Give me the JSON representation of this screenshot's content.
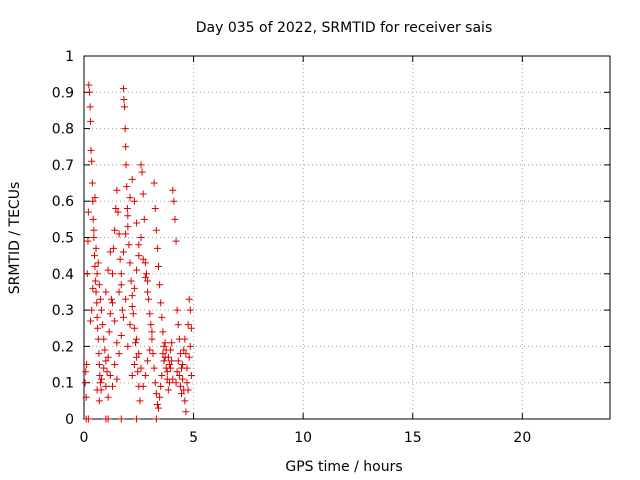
{
  "chart_data": {
    "type": "scatter",
    "title": "Day 035 of 2022, SRMTID for receiver sais",
    "xlabel": "GPS time / hours",
    "ylabel": "SRMTID / TECUs",
    "xlim": [
      0,
      24
    ],
    "ylim": [
      0,
      1
    ],
    "xticks": [
      0,
      5,
      10,
      15,
      20
    ],
    "xtick_labels": [
      "0",
      "5",
      "10",
      "15",
      "20"
    ],
    "yticks": [
      0,
      0.1,
      0.2,
      0.3,
      0.4,
      0.5,
      0.6,
      0.7,
      0.8,
      0.9,
      1
    ],
    "ytick_labels": [
      "0",
      "0.1",
      "0.2",
      "0.3",
      "0.4",
      "0.5",
      "0.6",
      "0.7",
      "0.8",
      "0.9",
      "1"
    ],
    "grid": true,
    "marker": "+",
    "color": "#dd0000",
    "series": [
      {
        "name": "SRMTID",
        "points": [
          [
            0.05,
            0.1
          ],
          [
            0.08,
            0.13
          ],
          [
            0.1,
            0.06
          ],
          [
            0.12,
            0.15
          ],
          [
            0.15,
            0.4
          ],
          [
            0.18,
            0.49
          ],
          [
            0.2,
            0.57
          ],
          [
            0.22,
            0.92
          ],
          [
            0.25,
            0.9
          ],
          [
            0.28,
            0.86
          ],
          [
            0.3,
            0.82
          ],
          [
            0.32,
            0.74
          ],
          [
            0.35,
            0.71
          ],
          [
            0.38,
            0.65
          ],
          [
            0.4,
            0.6
          ],
          [
            0.42,
            0.55
          ],
          [
            0.45,
            0.5
          ],
          [
            0.48,
            0.45
          ],
          [
            0.5,
            0.42
          ],
          [
            0.52,
            0.38
          ],
          [
            0.55,
            0.35
          ],
          [
            0.58,
            0.32
          ],
          [
            0.6,
            0.28
          ],
          [
            0.62,
            0.25
          ],
          [
            0.65,
            0.22
          ],
          [
            0.68,
            0.18
          ],
          [
            0.7,
            0.15
          ],
          [
            0.72,
            0.12
          ],
          [
            0.75,
            0.1
          ],
          [
            0.78,
            0.08
          ],
          [
            0.3,
            0.27
          ],
          [
            0.35,
            0.3
          ],
          [
            0.4,
            0.36
          ],
          [
            0.45,
            0.52
          ],
          [
            0.5,
            0.61
          ],
          [
            0.55,
            0.47
          ],
          [
            0.6,
            0.4
          ],
          [
            0.65,
            0.43
          ],
          [
            0.7,
            0.37
          ],
          [
            0.75,
            0.33
          ],
          [
            0.8,
            0.3
          ],
          [
            0.85,
            0.26
          ],
          [
            0.9,
            0.22
          ],
          [
            0.95,
            0.19
          ],
          [
            1.0,
            0.16
          ],
          [
            1.05,
            0.13
          ],
          [
            1.1,
            0.17
          ],
          [
            1.15,
            0.24
          ],
          [
            1.2,
            0.29
          ],
          [
            1.25,
            0.33
          ],
          [
            1.3,
            0.4
          ],
          [
            1.35,
            0.47
          ],
          [
            1.4,
            0.52
          ],
          [
            1.45,
            0.58
          ],
          [
            1.5,
            0.63
          ],
          [
            1.55,
            0.57
          ],
          [
            1.6,
            0.51
          ],
          [
            1.65,
            0.44
          ],
          [
            1.7,
            0.37
          ],
          [
            1.75,
            0.3
          ],
          [
            1.8,
            0.91
          ],
          [
            1.82,
            0.88
          ],
          [
            1.85,
            0.86
          ],
          [
            1.88,
            0.8
          ],
          [
            1.9,
            0.75
          ],
          [
            1.92,
            0.7
          ],
          [
            1.95,
            0.64
          ],
          [
            1.98,
            0.58
          ],
          [
            2.0,
            0.53
          ],
          [
            2.05,
            0.48
          ],
          [
            2.1,
            0.43
          ],
          [
            2.15,
            0.38
          ],
          [
            2.2,
            0.34
          ],
          [
            2.25,
            0.29
          ],
          [
            2.3,
            0.25
          ],
          [
            2.35,
            0.21
          ],
          [
            2.4,
            0.17
          ],
          [
            2.45,
            0.13
          ],
          [
            2.5,
            0.09
          ],
          [
            2.55,
            0.05
          ],
          [
            1.0,
            0.35
          ],
          [
            1.1,
            0.41
          ],
          [
            1.2,
            0.46
          ],
          [
            1.3,
            0.32
          ],
          [
            1.4,
            0.27
          ],
          [
            1.5,
            0.21
          ],
          [
            1.6,
            0.18
          ],
          [
            1.7,
            0.23
          ],
          [
            1.8,
            0.28
          ],
          [
            1.9,
            0.33
          ],
          [
            2.0,
            0.2
          ],
          [
            2.1,
            0.26
          ],
          [
            2.2,
            0.31
          ],
          [
            2.3,
            0.36
          ],
          [
            2.4,
            0.41
          ],
          [
            2.5,
            0.45
          ],
          [
            2.6,
            0.5
          ],
          [
            2.7,
            0.44
          ],
          [
            2.8,
            0.39
          ],
          [
            2.9,
            0.35
          ],
          [
            2.6,
            0.7
          ],
          [
            2.65,
            0.68
          ],
          [
            2.7,
            0.62
          ],
          [
            2.75,
            0.55
          ],
          [
            2.8,
            0.43
          ],
          [
            2.85,
            0.4
          ],
          [
            2.9,
            0.38
          ],
          [
            2.95,
            0.33
          ],
          [
            3.0,
            0.29
          ],
          [
            3.05,
            0.26
          ],
          [
            3.1,
            0.22
          ],
          [
            3.15,
            0.18
          ],
          [
            3.2,
            0.14
          ],
          [
            3.25,
            0.1
          ],
          [
            3.3,
            0.07
          ],
          [
            3.35,
            0.04
          ],
          [
            3.4,
            0.03
          ],
          [
            3.45,
            0.06
          ],
          [
            3.5,
            0.09
          ],
          [
            3.55,
            0.12
          ],
          [
            3.2,
            0.65
          ],
          [
            3.25,
            0.58
          ],
          [
            3.3,
            0.52
          ],
          [
            3.35,
            0.47
          ],
          [
            3.4,
            0.42
          ],
          [
            3.45,
            0.37
          ],
          [
            3.5,
            0.32
          ],
          [
            3.55,
            0.28
          ],
          [
            3.6,
            0.24
          ],
          [
            3.65,
            0.2
          ],
          [
            3.7,
            0.17
          ],
          [
            3.75,
            0.14
          ],
          [
            3.8,
            0.11
          ],
          [
            3.85,
            0.08
          ],
          [
            3.9,
            0.15
          ],
          [
            3.95,
            0.19
          ],
          [
            4.0,
            0.21
          ],
          [
            4.05,
            0.63
          ],
          [
            4.1,
            0.6
          ],
          [
            4.15,
            0.55
          ],
          [
            4.2,
            0.49
          ],
          [
            4.25,
            0.3
          ],
          [
            4.3,
            0.26
          ],
          [
            4.35,
            0.22
          ],
          [
            4.4,
            0.18
          ],
          [
            4.45,
            0.14
          ],
          [
            4.5,
            0.11
          ],
          [
            4.55,
            0.08
          ],
          [
            4.6,
            0.05
          ],
          [
            4.65,
            0.02
          ],
          [
            4.2,
            0.1
          ],
          [
            4.25,
            0.13
          ],
          [
            4.3,
            0.16
          ],
          [
            4.35,
            0.12
          ],
          [
            4.4,
            0.09
          ],
          [
            4.45,
            0.07
          ],
          [
            4.5,
            0.15
          ],
          [
            4.55,
            0.19
          ],
          [
            4.6,
            0.22
          ],
          [
            4.65,
            0.18
          ],
          [
            4.7,
            0.14
          ],
          [
            4.75,
            0.26
          ],
          [
            4.8,
            0.33
          ],
          [
            4.85,
            0.3
          ],
          [
            4.7,
            0.1
          ],
          [
            4.75,
            0.08
          ],
          [
            4.8,
            0.17
          ],
          [
            4.85,
            0.2
          ],
          [
            4.9,
            0.25
          ],
          [
            4.9,
            0.12
          ],
          [
            3.6,
            0.18
          ],
          [
            3.65,
            0.16
          ],
          [
            3.7,
            0.21
          ],
          [
            3.75,
            0.19
          ],
          [
            3.8,
            0.13
          ],
          [
            3.85,
            0.17
          ],
          [
            3.9,
            0.1
          ],
          [
            3.95,
            0.14
          ],
          [
            4.0,
            0.16
          ],
          [
            4.05,
            0.11
          ],
          [
            2.2,
            0.12
          ],
          [
            2.3,
            0.15
          ],
          [
            2.4,
            0.22
          ],
          [
            2.5,
            0.18
          ],
          [
            2.6,
            0.14
          ],
          [
            2.7,
            0.09
          ],
          [
            2.8,
            0.12
          ],
          [
            2.9,
            0.16
          ],
          [
            3.0,
            0.19
          ],
          [
            3.1,
            0.24
          ],
          [
            0.6,
            0.08
          ],
          [
            0.7,
            0.05
          ],
          [
            0.8,
            0.11
          ],
          [
            0.9,
            0.14
          ],
          [
            1.0,
            0.09
          ],
          [
            1.1,
            0.06
          ],
          [
            1.2,
            0.12
          ],
          [
            1.3,
            0.09
          ],
          [
            1.4,
            0.15
          ],
          [
            1.5,
            0.11
          ],
          [
            1.6,
            0.35
          ],
          [
            1.7,
            0.4
          ],
          [
            1.8,
            0.46
          ],
          [
            1.9,
            0.51
          ],
          [
            2.0,
            0.56
          ],
          [
            2.1,
            0.61
          ],
          [
            2.2,
            0.66
          ],
          [
            2.3,
            0.6
          ],
          [
            2.4,
            0.54
          ],
          [
            2.5,
            0.48
          ],
          [
            0.1,
            0.0
          ],
          [
            0.2,
            0.0
          ],
          [
            1.0,
            0.0
          ],
          [
            1.1,
            0.0
          ],
          [
            1.7,
            0.0
          ],
          [
            2.4,
            0.0
          ],
          [
            3.3,
            0.0
          ]
        ]
      }
    ]
  }
}
